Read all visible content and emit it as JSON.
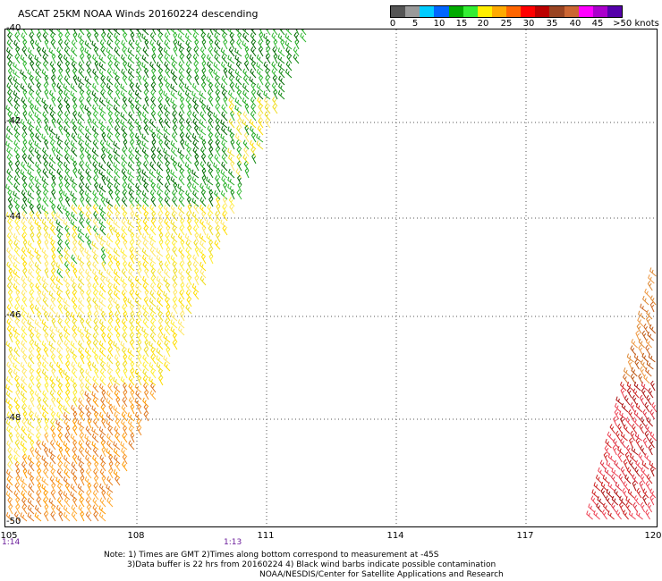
{
  "title": "ASCAT 25KM NOAA Winds 20160224 descending",
  "colorbar": {
    "colors": [
      "#555555",
      "#9a9a9a",
      "#00ccff",
      "#0066ff",
      "#00aa00",
      "#33ee33",
      "#ffee00",
      "#ffaa00",
      "#ff6600",
      "#ff0000",
      "#bb0000",
      "#994422",
      "#cc6633",
      "#ff00ff",
      "#aa00cc",
      "#5500aa"
    ],
    "labels": [
      "0",
      "5",
      "10",
      "15",
      "20",
      "25",
      "30",
      "35",
      "40",
      "45",
      ">50 knots"
    ],
    "unit": "knots"
  },
  "axes": {
    "lat_labels": [
      "-40",
      "-42",
      "-44",
      "-46",
      "-48",
      "-50"
    ],
    "lon_labels": [
      "105",
      "108",
      "111",
      "114",
      "117",
      "120"
    ],
    "lat_range": [
      -50,
      -40
    ],
    "lon_range": [
      105,
      120
    ]
  },
  "times": [
    "1:14",
    "1:13"
  ],
  "notes": {
    "line1": "Note: 1) Times are GMT 2)Times along bottom correspond to measurement at -45S",
    "line2": "3)Data buffer is 22 hrs from 20160224 4) Black wind barbs indicate possible contamination",
    "line3": "NOAA/NESDIS/Center for Satellite Applications and Research"
  }
}
